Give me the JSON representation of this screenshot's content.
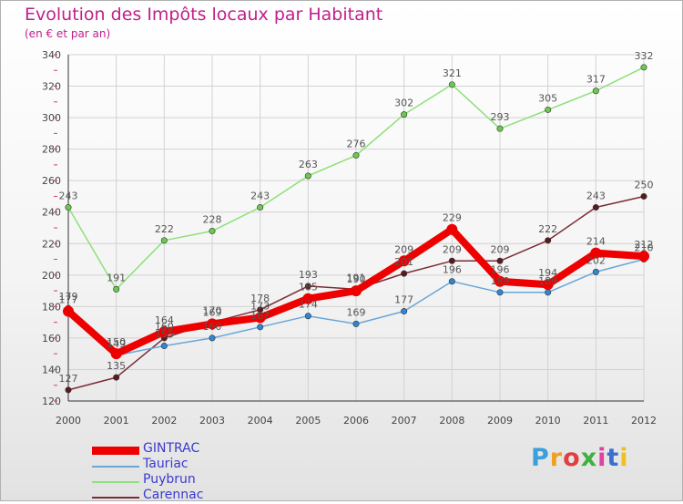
{
  "title": "Evolution des Impôts locaux par Habitant",
  "subtitle": "(en € et par an)",
  "logo": {
    "text": "Proxiti",
    "colors": [
      "#3aa0dc",
      "#f0a020",
      "#e04040",
      "#40b040",
      "#e040a0",
      "#3a70d0",
      "#f0c020"
    ]
  },
  "chart_data": {
    "type": "line",
    "title": "Evolution des Impôts locaux par Habitant",
    "subtitle": "(en € et par an)",
    "xlabel": "",
    "ylabel": "",
    "x": [
      "2000",
      "2001",
      "2002",
      "2003",
      "2004",
      "2005",
      "2006",
      "2007",
      "2008",
      "2009",
      "2010",
      "2011",
      "2012"
    ],
    "ylim": [
      120,
      340
    ],
    "yticks": [
      "120",
      "140",
      "160",
      "180",
      "200",
      "220",
      "240",
      "260",
      "280",
      "300",
      "320",
      "340"
    ],
    "grid": true,
    "legend_position": "bottom-left",
    "series": [
      {
        "name": "GINTRAC",
        "values": [
          177,
          150,
          164,
          169,
          173,
          185,
          190,
          209,
          229,
          196,
          194,
          214,
          212
        ],
        "labels": [
          "177",
          "150",
          "164",
          "169",
          "173",
          "185",
          "190",
          "209",
          "229",
          "196",
          "194",
          "214",
          "212"
        ],
        "color": "#ee0000",
        "marker": "#ee0000"
      },
      {
        "name": "Tauriac",
        "values": [
          179,
          149,
          155,
          160,
          167,
          174,
          169,
          177,
          196,
          189,
          189,
          202,
          210
        ],
        "labels": [
          "179",
          "149",
          "155",
          "160",
          "167",
          "174",
          "169",
          "177",
          "196",
          "189",
          "189",
          "202",
          "210"
        ],
        "color": "#6aa6d8",
        "marker": "#2f86d4"
      },
      {
        "name": "Puybrun",
        "values": [
          243,
          191,
          222,
          228,
          243,
          263,
          276,
          302,
          321,
          293,
          305,
          317,
          332
        ],
        "labels": [
          "243",
          "191",
          "222",
          "228",
          "243",
          "263",
          "276",
          "302",
          "321",
          "293",
          "305",
          "317",
          "332"
        ],
        "color": "#8ee07a",
        "marker": "#6cc84e"
      },
      {
        "name": "Carennac",
        "values": [
          127,
          135,
          160,
          170,
          178,
          193,
          191,
          201,
          209,
          209,
          222,
          243,
          250
        ],
        "labels": [
          "127",
          "135",
          "160",
          "170",
          "178",
          "193",
          "191",
          "201",
          "209",
          "209",
          "222",
          "243",
          "250"
        ],
        "color": "#7a2d35",
        "marker": "#5a1a20"
      }
    ]
  }
}
